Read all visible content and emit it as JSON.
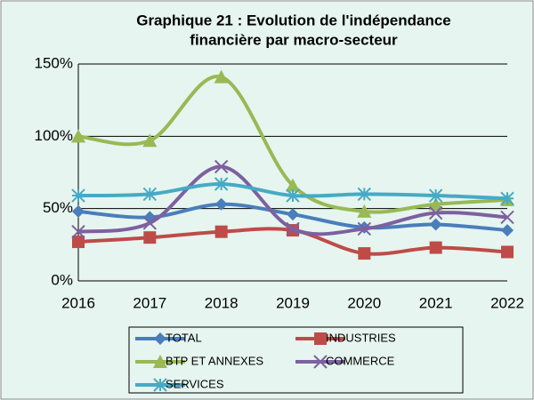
{
  "chart_data": {
    "type": "line",
    "title": [
      "Graphique 21 : Evolution de l'indépendance",
      "financière par macro-secteur"
    ],
    "categories": [
      "2016",
      "2017",
      "2018",
      "2019",
      "2020",
      "2021",
      "2022"
    ],
    "series": [
      {
        "name": "TOTAL",
        "color": "#4a7ebb",
        "marker": "diamond",
        "values": [
          48,
          44,
          53,
          46,
          37,
          39,
          35
        ]
      },
      {
        "name": "INDUSTRIES",
        "color": "#be4b48",
        "marker": "square",
        "values": [
          27,
          30,
          34,
          35,
          19,
          23,
          20
        ]
      },
      {
        "name": "BTP ET ANNEXES",
        "color": "#98b954",
        "marker": "triangle",
        "values": [
          100,
          97,
          141,
          66,
          48,
          53,
          56
        ]
      },
      {
        "name": "COMMERCE",
        "color": "#7d60a0",
        "marker": "x",
        "values": [
          34,
          40,
          79,
          36,
          36,
          47,
          44
        ]
      },
      {
        "name": "SERVICES",
        "color": "#46aac5",
        "marker": "star",
        "values": [
          59,
          60,
          67,
          59,
          60,
          59,
          57
        ]
      }
    ],
    "ylim": [
      0,
      150
    ],
    "yticks": [
      {
        "value": 0,
        "label": "0%"
      },
      {
        "value": 50,
        "label": "50%"
      },
      {
        "value": 100,
        "label": "100%"
      },
      {
        "value": 150,
        "label": "150%"
      }
    ],
    "grid": true,
    "smooth": true,
    "legend": "bottom"
  }
}
